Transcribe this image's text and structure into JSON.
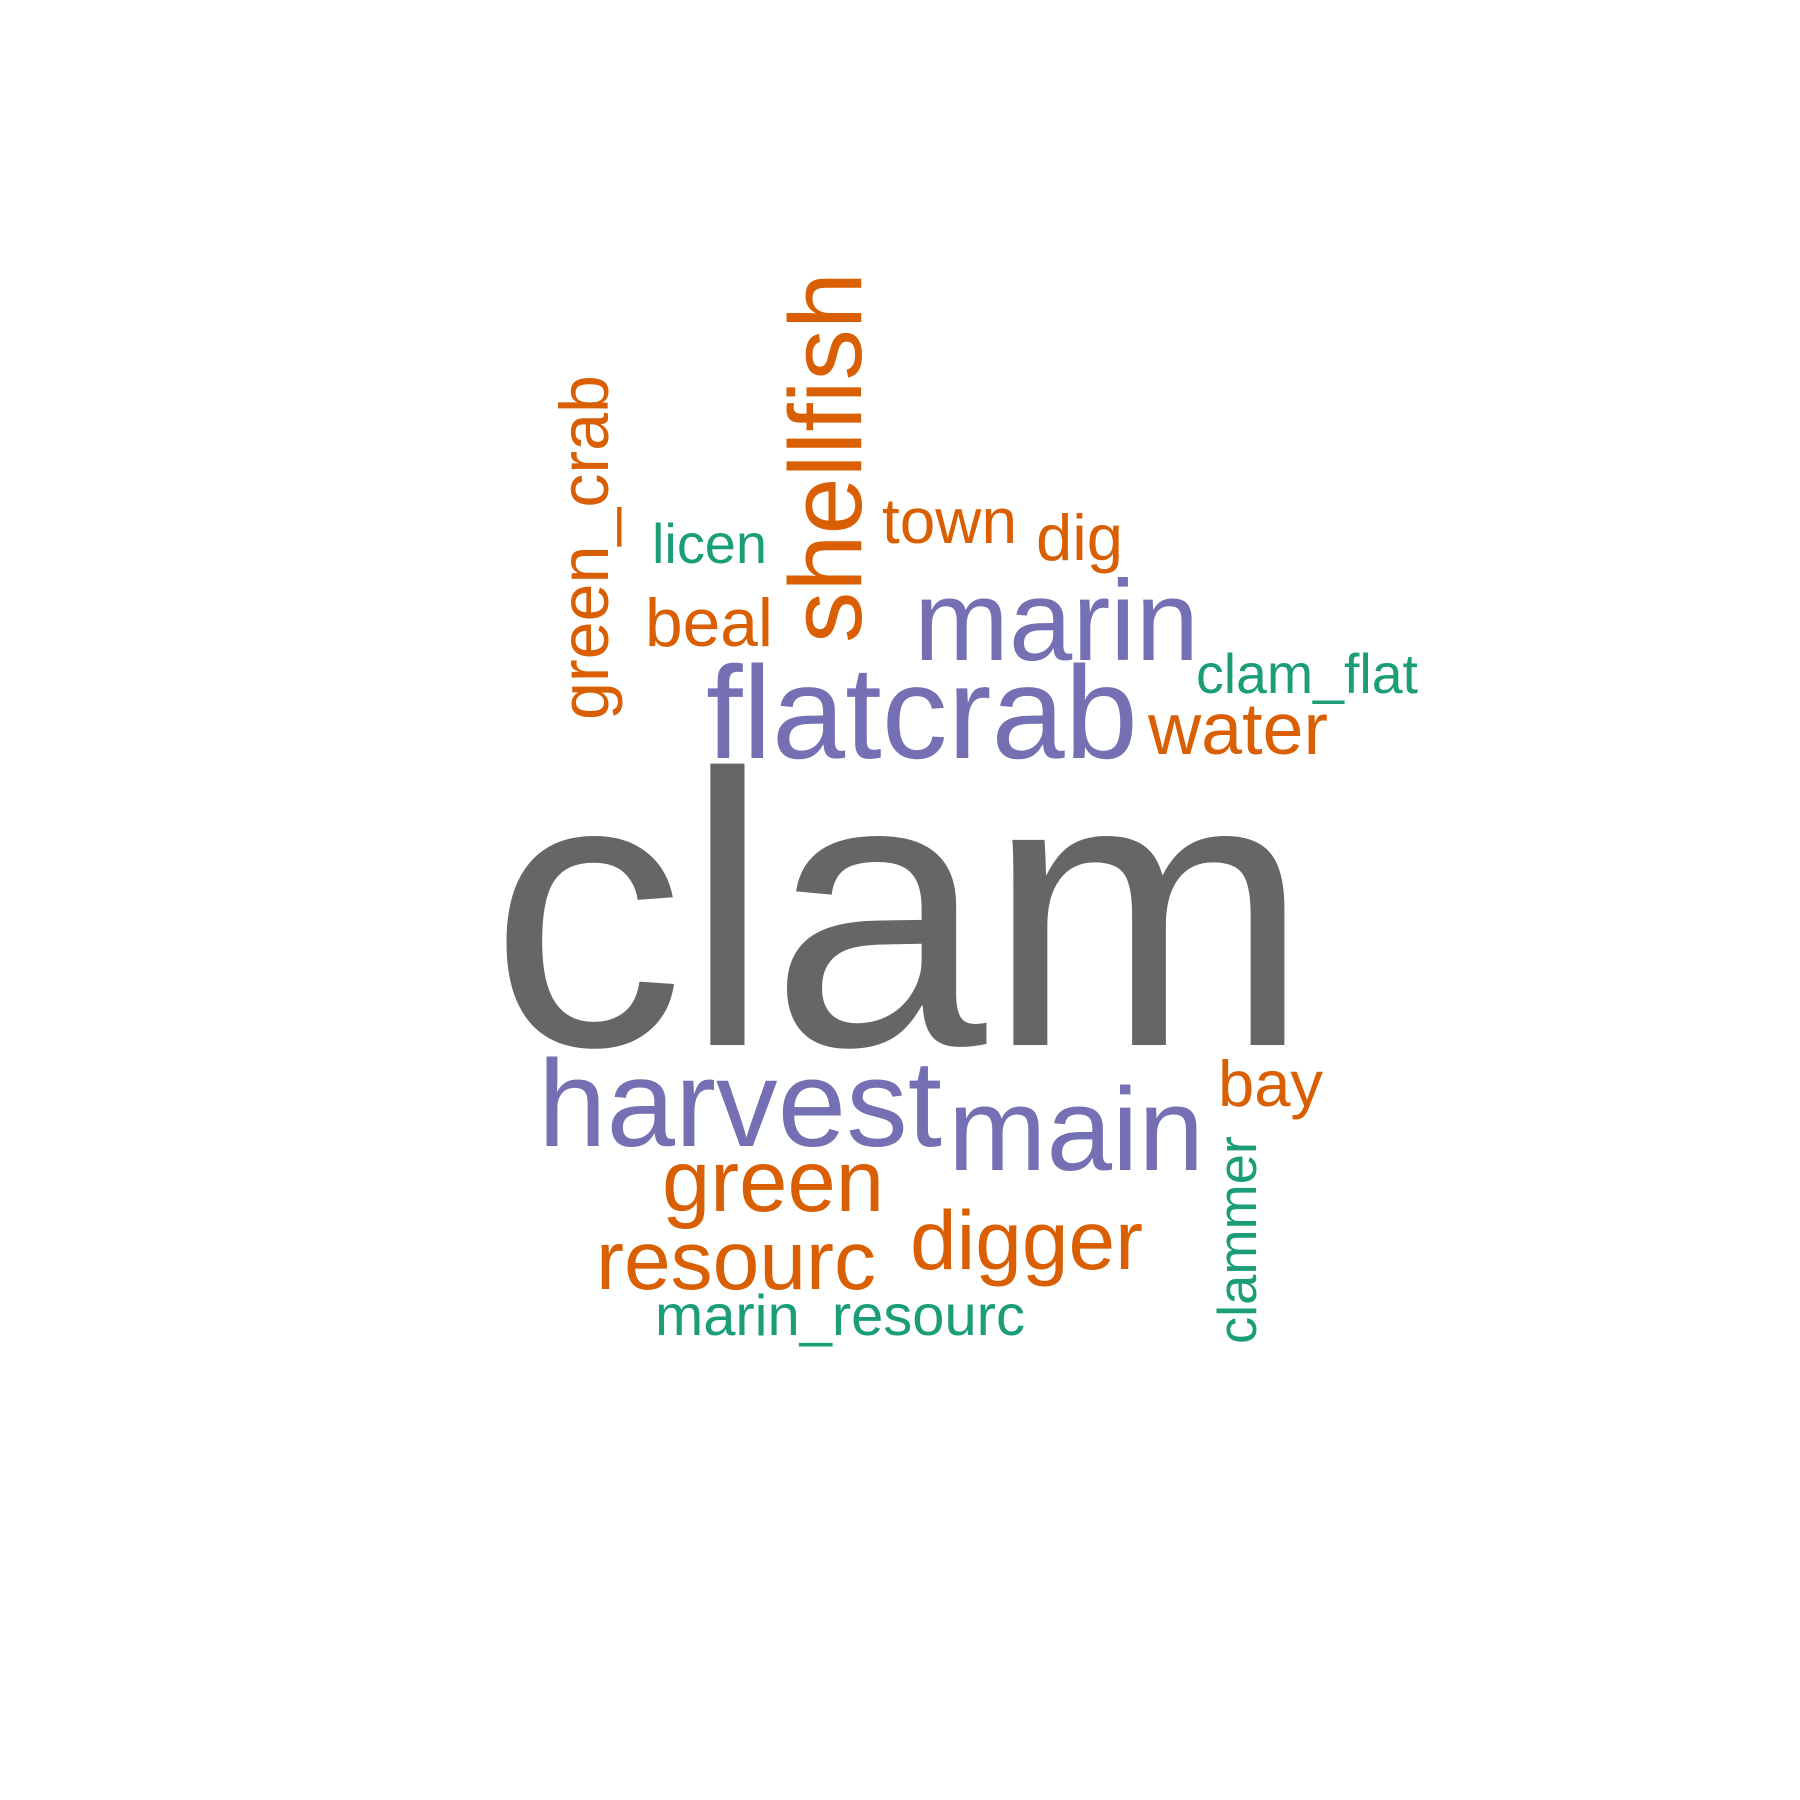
{
  "colors": {
    "gray": "#666666",
    "purple": "#7570b3",
    "orange": "#d95f02",
    "teal": "#1b9e77"
  },
  "words": {
    "clam": "clam",
    "flatcrab": "flatcrab",
    "harvest": "harvest",
    "main": "main",
    "marin": "marin",
    "shellfish": "shellfish",
    "green": "green",
    "digger": "digger",
    "resourc": "resourc",
    "water": "water",
    "green_crab": "green_crab",
    "town": "town",
    "beal": "beal",
    "dig": "dig",
    "bay": "bay",
    "licen": "licen",
    "clam_flat": "clam_flat",
    "marin_resourc": "marin_resourc",
    "clammer": "clammer"
  }
}
